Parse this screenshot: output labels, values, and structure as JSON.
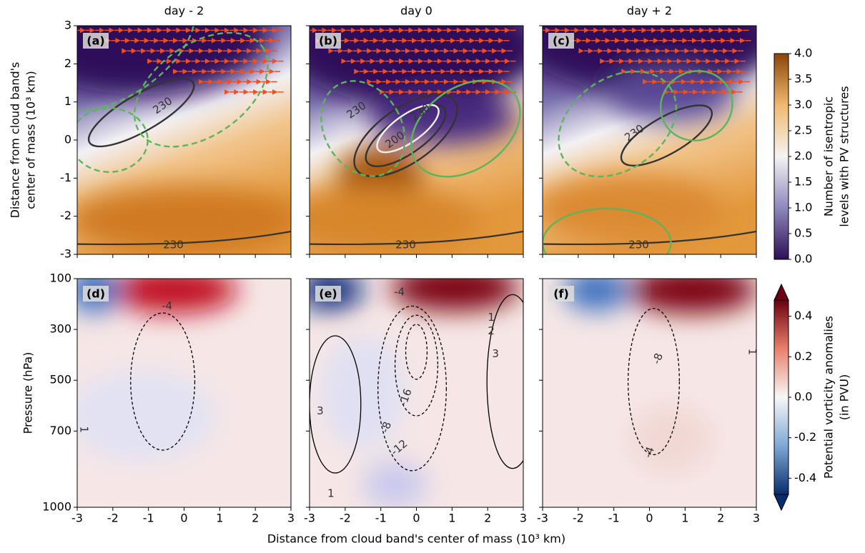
{
  "chart_data": [
    {
      "type": "field",
      "title": "day - 2",
      "panel_label": "(a)",
      "ylabel": [
        "Distance from cloud band's",
        "center of mass (10³ km)"
      ],
      "xlim": [
        -3,
        3
      ],
      "xticks": [
        -3,
        -2,
        -1,
        0,
        1,
        2,
        3
      ],
      "ylim": [
        -3,
        3
      ],
      "yticks": [
        3,
        2,
        1,
        0,
        -1,
        -2,
        -3
      ],
      "contour_labels": [
        230,
        230
      ]
    },
    {
      "type": "field",
      "title": "day 0",
      "panel_label": "(b)",
      "xlim": [
        -3,
        3
      ],
      "xticks": [
        -3,
        -2,
        -1,
        0,
        1,
        2,
        3
      ],
      "ylim": [
        -3,
        3
      ],
      "yticks": [
        3,
        2,
        1,
        0,
        -1,
        -2,
        -3
      ],
      "contour_labels": [
        230,
        200,
        230,
        230
      ]
    },
    {
      "type": "field",
      "title": "day + 2",
      "panel_label": "(c)",
      "xlim": [
        -3,
        3
      ],
      "xticks": [
        -3,
        -2,
        -1,
        0,
        1,
        2,
        3
      ],
      "ylim": [
        -3,
        3
      ],
      "yticks": [
        3,
        2,
        1,
        0,
        -1,
        -2,
        -3
      ],
      "contour_labels": [
        230,
        230
      ]
    },
    {
      "type": "section",
      "panel_label": "(d)",
      "ylabel": "Pressure (hPa)",
      "xlim": [
        -3,
        3
      ],
      "xticks": [
        -3,
        -2,
        -1,
        0,
        1,
        2,
        3
      ],
      "ylim": [
        1000,
        100
      ],
      "yticks": [
        100,
        300,
        500,
        700,
        1000
      ],
      "contour_labels": [
        -4,
        1
      ]
    },
    {
      "type": "section",
      "panel_label": "(e)",
      "xlabel": "Distance from cloud band's center of mass (10³ km)",
      "xlim": [
        -3,
        3
      ],
      "xticks": [
        -3,
        -2,
        -1,
        0,
        1,
        2,
        3
      ],
      "ylim": [
        1000,
        100
      ],
      "yticks": [
        100,
        300,
        500,
        700,
        1000
      ],
      "contour_labels": [
        -4,
        1,
        2,
        3,
        3,
        1,
        -8,
        -16,
        -12
      ]
    },
    {
      "type": "section",
      "panel_label": "(f)",
      "xlim": [
        -3,
        3
      ],
      "xticks": [
        -3,
        -2,
        -1,
        0,
        1,
        2,
        3
      ],
      "ylim": [
        1000,
        100
      ],
      "yticks": [
        100,
        300,
        500,
        700,
        1000
      ],
      "contour_labels": [
        -8,
        -4,
        1
      ]
    },
    {
      "type": "colorbar",
      "label": [
        "Number of isentropic",
        "levels with PV structures"
      ],
      "ylim": [
        0,
        4
      ],
      "yticks": [
        {
          "value": 0,
          "label": "0.0"
        },
        0.5,
        {
          "value": 1,
          "label": "1.0"
        },
        1.5,
        {
          "value": 2,
          "label": "2.0"
        },
        2.5,
        {
          "value": 3,
          "label": "3.0"
        },
        3.5,
        {
          "value": 4,
          "label": "4.0"
        }
      ]
    },
    {
      "type": "colorbar",
      "label": [
        "Potential vorticity anomalies",
        "(in PVU)"
      ],
      "ylim": [
        -0.48,
        0.48
      ],
      "yticks": [
        -0.4,
        -0.2,
        {
          "value": 0,
          "label": "0.0"
        },
        0.2,
        0.4
      ]
    }
  ]
}
